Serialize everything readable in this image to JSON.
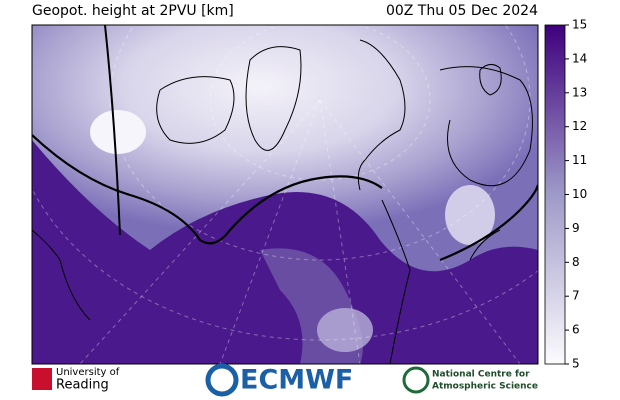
{
  "header": {
    "title": "Geopot. height at 2PVU [km]",
    "valid_time": "00Z Thu 05 Dec 2024"
  },
  "colorbar": {
    "range": [
      5,
      15
    ],
    "ticks": [
      5,
      6,
      7,
      8,
      9,
      10,
      11,
      12,
      13,
      14,
      15
    ],
    "colors": [
      "#fcfbfd",
      "#3f007d"
    ]
  },
  "logos": {
    "university": [
      "University of",
      "Reading"
    ],
    "ecmwf": "ECMWF",
    "ncas": [
      "National Centre for",
      "Atmospheric Science"
    ]
  }
}
